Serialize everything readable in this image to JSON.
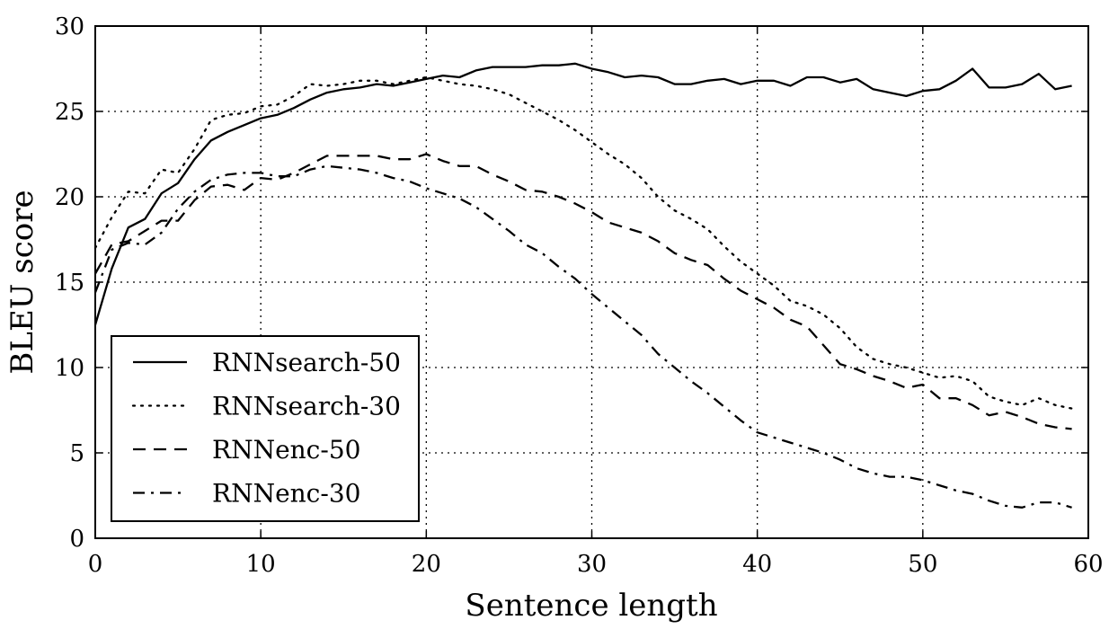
{
  "chart_data": {
    "type": "line",
    "title": "",
    "xlabel": "Sentence length",
    "ylabel": "BLEU score",
    "xlim": [
      0,
      60
    ],
    "ylim": [
      0,
      30
    ],
    "x_ticks": [
      0,
      10,
      20,
      30,
      40,
      50,
      60
    ],
    "y_ticks": [
      0,
      5,
      10,
      15,
      20,
      25,
      30
    ],
    "grid": true,
    "legend_position": "lower-left",
    "series": [
      {
        "name": "RNNsearch-50",
        "style": "solid",
        "color": "#000000",
        "x": [
          0,
          1,
          2,
          3,
          4,
          5,
          6,
          7,
          8,
          9,
          10,
          11,
          12,
          13,
          14,
          15,
          16,
          17,
          18,
          19,
          20,
          21,
          22,
          23,
          24,
          25,
          26,
          27,
          28,
          29,
          30,
          31,
          32,
          33,
          34,
          35,
          36,
          37,
          38,
          39,
          40,
          41,
          42,
          43,
          44,
          45,
          46,
          47,
          48,
          49,
          50,
          51,
          52,
          53,
          54,
          55,
          56,
          57,
          58,
          59
        ],
        "values": [
          12.5,
          15.8,
          18.2,
          18.7,
          20.2,
          20.8,
          22.2,
          23.3,
          23.8,
          24.2,
          24.6,
          24.8,
          25.2,
          25.7,
          26.1,
          26.3,
          26.4,
          26.6,
          26.5,
          26.7,
          26.9,
          27.1,
          27.0,
          27.4,
          27.6,
          27.6,
          27.6,
          27.7,
          27.7,
          27.8,
          27.5,
          27.3,
          27.0,
          27.1,
          27.0,
          26.6,
          26.6,
          26.8,
          26.9,
          26.6,
          26.8,
          26.8,
          26.5,
          27.0,
          27.0,
          26.7,
          26.9,
          26.3,
          26.1,
          25.9,
          26.2,
          26.3,
          26.8,
          27.5,
          26.4,
          26.4,
          26.6,
          27.2,
          26.3,
          26.5
        ]
      },
      {
        "name": "RNNsearch-30",
        "style": "dotted",
        "color": "#000000",
        "x": [
          0,
          1,
          2,
          3,
          4,
          5,
          6,
          7,
          8,
          9,
          10,
          11,
          12,
          13,
          14,
          15,
          16,
          17,
          18,
          19,
          20,
          21,
          22,
          23,
          24,
          25,
          26,
          27,
          28,
          29,
          30,
          31,
          32,
          33,
          34,
          35,
          36,
          37,
          38,
          39,
          40,
          41,
          42,
          43,
          44,
          45,
          46,
          47,
          48,
          49,
          50,
          51,
          52,
          53,
          54,
          55,
          56,
          57,
          58,
          59
        ],
        "values": [
          17.0,
          18.8,
          20.3,
          20.2,
          21.6,
          21.4,
          22.8,
          24.5,
          24.8,
          24.9,
          25.3,
          25.4,
          25.9,
          26.6,
          26.5,
          26.6,
          26.8,
          26.8,
          26.6,
          26.8,
          27.0,
          26.8,
          26.6,
          26.5,
          26.3,
          26.0,
          25.5,
          25.0,
          24.5,
          23.9,
          23.2,
          22.5,
          21.9,
          21.1,
          20.0,
          19.2,
          18.7,
          18.1,
          17.1,
          16.2,
          15.5,
          14.8,
          13.9,
          13.6,
          13.1,
          12.3,
          11.2,
          10.5,
          10.2,
          10.0,
          9.7,
          9.4,
          9.5,
          9.2,
          8.3,
          8.0,
          7.8,
          8.2,
          7.8,
          7.6
        ]
      },
      {
        "name": "RNNenc-50",
        "style": "dashed",
        "color": "#000000",
        "x": [
          0,
          1,
          2,
          3,
          4,
          5,
          6,
          7,
          8,
          9,
          10,
          11,
          12,
          13,
          14,
          15,
          16,
          17,
          18,
          19,
          20,
          21,
          22,
          23,
          24,
          25,
          26,
          27,
          28,
          29,
          30,
          31,
          32,
          33,
          34,
          35,
          36,
          37,
          38,
          39,
          40,
          41,
          42,
          43,
          44,
          45,
          46,
          47,
          48,
          49,
          50,
          51,
          52,
          53,
          54,
          55,
          56,
          57,
          58,
          59
        ],
        "values": [
          15.5,
          17.2,
          17.4,
          18.0,
          18.6,
          18.6,
          19.8,
          20.6,
          20.7,
          20.4,
          21.1,
          21.0,
          21.4,
          21.9,
          22.4,
          22.4,
          22.4,
          22.4,
          22.2,
          22.2,
          22.5,
          22.1,
          21.8,
          21.8,
          21.3,
          20.9,
          20.4,
          20.3,
          20.0,
          19.6,
          19.1,
          18.5,
          18.2,
          17.9,
          17.4,
          16.7,
          16.3,
          16.0,
          15.2,
          14.5,
          14.0,
          13.5,
          12.8,
          12.4,
          11.3,
          10.2,
          9.9,
          9.5,
          9.2,
          8.8,
          9.0,
          8.2,
          8.2,
          7.8,
          7.2,
          7.4,
          7.1,
          6.7,
          6.5,
          6.4
        ]
      },
      {
        "name": "RNNenc-30",
        "style": "dashdot",
        "color": "#000000",
        "x": [
          0,
          1,
          2,
          3,
          4,
          5,
          6,
          7,
          8,
          9,
          10,
          11,
          12,
          13,
          14,
          15,
          16,
          17,
          18,
          19,
          20,
          21,
          22,
          23,
          24,
          25,
          26,
          27,
          28,
          29,
          30,
          31,
          32,
          33,
          34,
          35,
          36,
          37,
          38,
          39,
          40,
          41,
          42,
          43,
          44,
          45,
          46,
          47,
          48,
          49,
          50,
          51,
          52,
          53,
          54,
          55,
          56,
          57,
          58,
          59
        ],
        "values": [
          14.4,
          16.9,
          17.3,
          17.2,
          17.9,
          19.3,
          20.3,
          21.0,
          21.3,
          21.4,
          21.4,
          21.2,
          21.2,
          21.6,
          21.8,
          21.7,
          21.6,
          21.4,
          21.1,
          20.9,
          20.5,
          20.2,
          19.9,
          19.4,
          18.7,
          18.0,
          17.2,
          16.7,
          15.9,
          15.2,
          14.3,
          13.5,
          12.7,
          11.9,
          10.8,
          10.0,
          9.2,
          8.5,
          7.7,
          6.9,
          6.2,
          5.9,
          5.6,
          5.3,
          5.0,
          4.6,
          4.1,
          3.8,
          3.6,
          3.6,
          3.4,
          3.1,
          2.8,
          2.6,
          2.2,
          1.9,
          1.8,
          2.1,
          2.1,
          1.8
        ]
      }
    ]
  }
}
